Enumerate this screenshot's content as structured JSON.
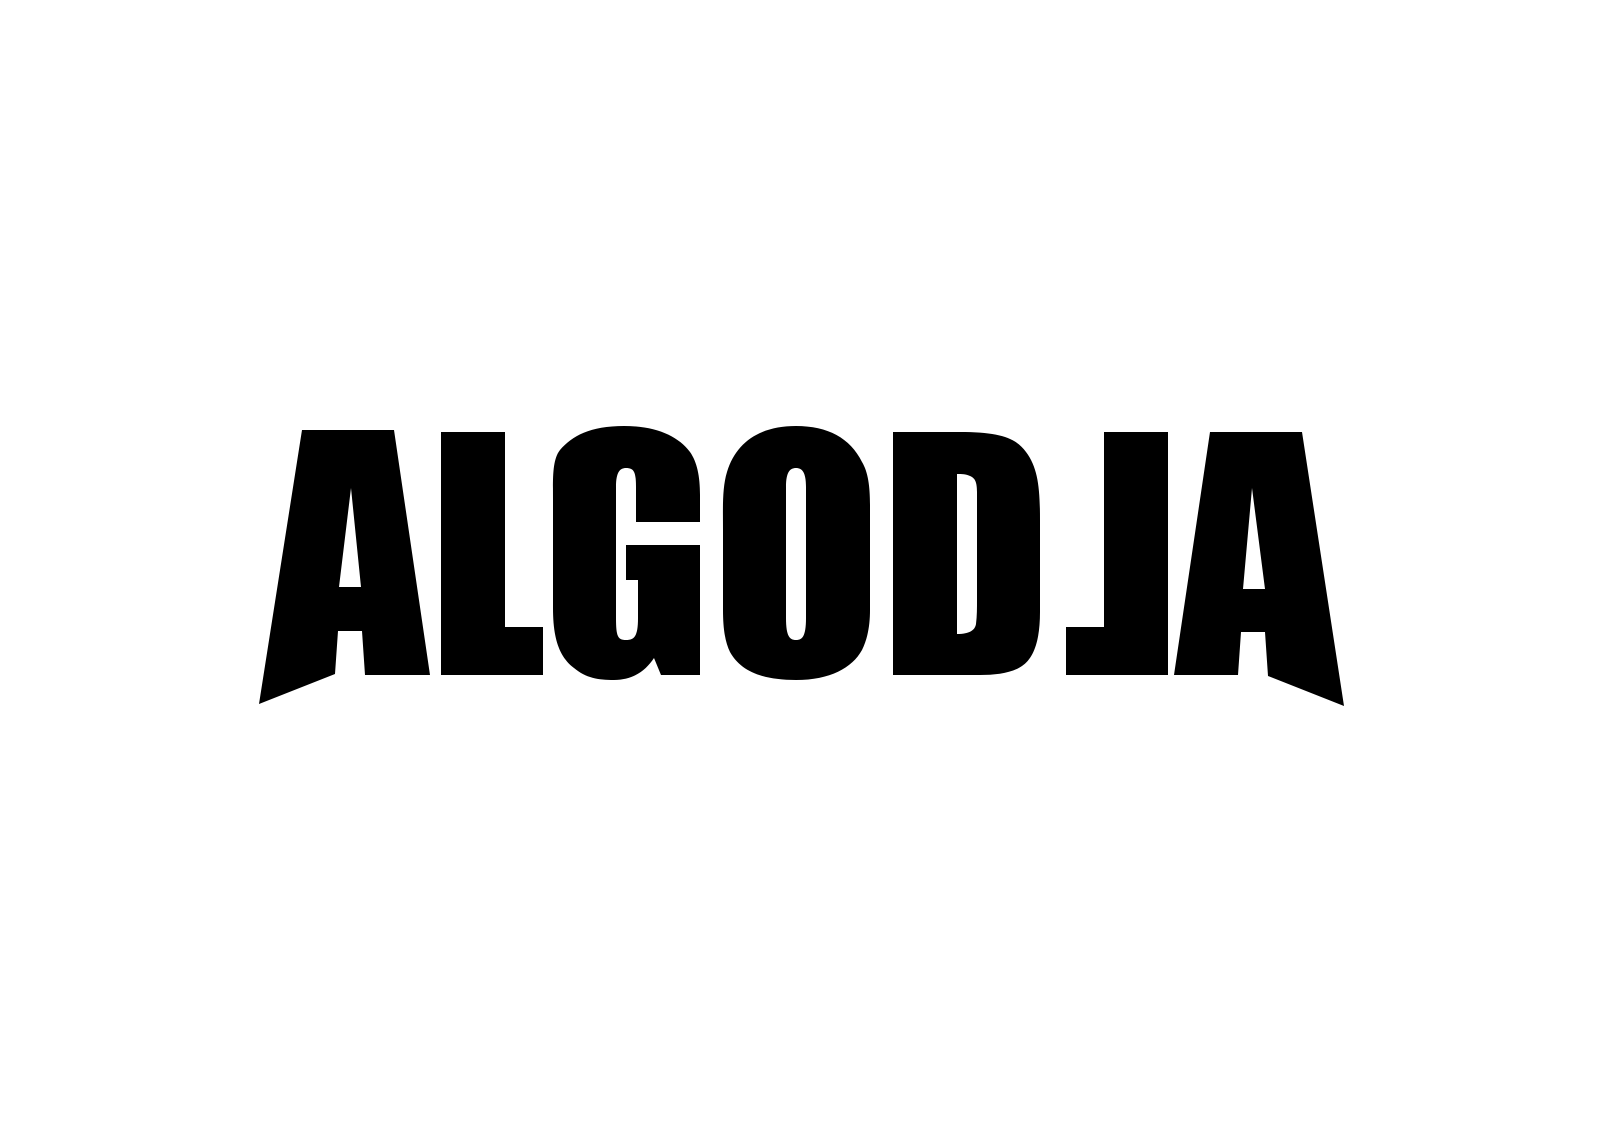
{
  "logo": {
    "wordmark": "ALGODJA",
    "ink_color": "#000000",
    "background_color": "#ffffff"
  }
}
